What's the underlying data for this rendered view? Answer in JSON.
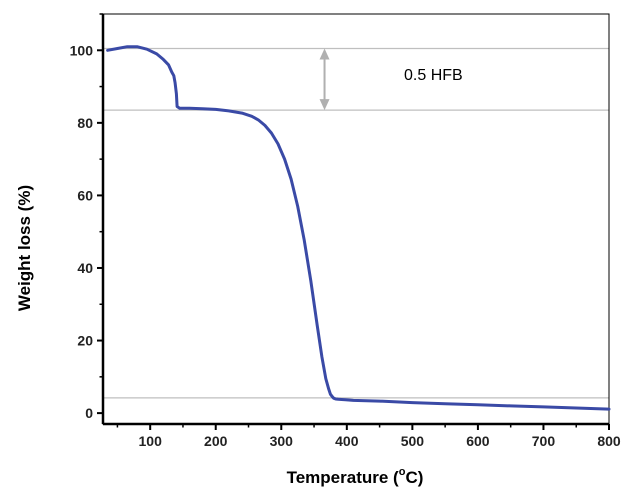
{
  "colors": {
    "series": "#3a4aa6",
    "reference_line": "#bfbfbf",
    "annotation_arrow": "#b0b0b0",
    "axis": "#000000"
  },
  "chart_data": {
    "type": "line",
    "xlabel_main": "Temperature (",
    "xlabel_sup": "o",
    "xlabel_end": "C)",
    "ylabel": "Weight loss (%)",
    "xlim": [
      28,
      800
    ],
    "ylim": [
      -3,
      110
    ],
    "xticks": [
      100,
      200,
      300,
      400,
      500,
      600,
      700,
      800
    ],
    "yticks": [
      0,
      20,
      40,
      60,
      80,
      100
    ],
    "grid": false,
    "reference_lines_y": [
      100.5,
      83.5,
      4.2
    ],
    "annotation": {
      "text": "0.5 HFB",
      "arrow_from_y": 100.5,
      "arrow_to_y": 83.5,
      "arrow_x": 366
    },
    "series": [
      {
        "x": [
          35,
          50,
          65,
          80,
          95,
          110,
          120,
          128,
          133,
          136,
          138,
          140,
          141,
          145,
          160,
          180,
          200,
          220,
          240,
          255,
          265,
          275,
          285,
          295,
          305,
          315,
          325,
          335,
          345,
          355,
          362,
          368,
          372,
          375,
          378,
          380,
          383,
          387,
          392,
          398,
          410,
          450,
          500,
          550,
          600,
          650,
          700,
          750,
          800
        ],
        "y": [
          100,
          100.5,
          101,
          101,
          100.3,
          99,
          97.5,
          96,
          94,
          93,
          91,
          88,
          84.5,
          84,
          84,
          83.9,
          83.7,
          83.3,
          82.7,
          81.8,
          80.8,
          79.3,
          77.2,
          74.2,
          70,
          64.5,
          57,
          47.7,
          36.5,
          24,
          15.5,
          9.5,
          6.8,
          5.2,
          4.5,
          4.1,
          3.9,
          3.8,
          3.75,
          3.7,
          3.5,
          3.3,
          2.9,
          2.6,
          2.3,
          2,
          1.7,
          1.4,
          1.1
        ]
      }
    ]
  }
}
